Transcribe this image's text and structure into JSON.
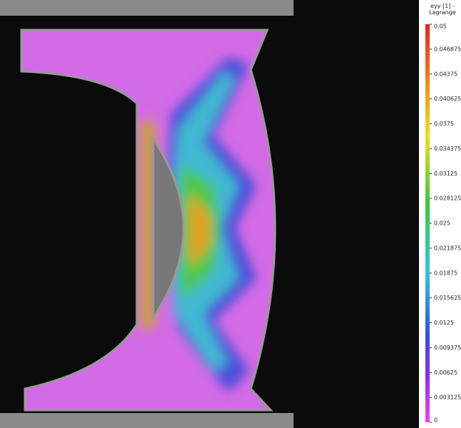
{
  "colorbar": {
    "title": "eyy [1] - Lagrange",
    "lim": [
      0,
      0.05
    ],
    "ticks": [
      0.05,
      0.046875,
      0.04375,
      0.040625,
      0.0375,
      0.034375,
      0.03125,
      0.028125,
      0.025,
      0.021875,
      0.01875,
      0.015625,
      0.0125,
      0.009375,
      0.00625,
      0.003125,
      0
    ]
  }
}
